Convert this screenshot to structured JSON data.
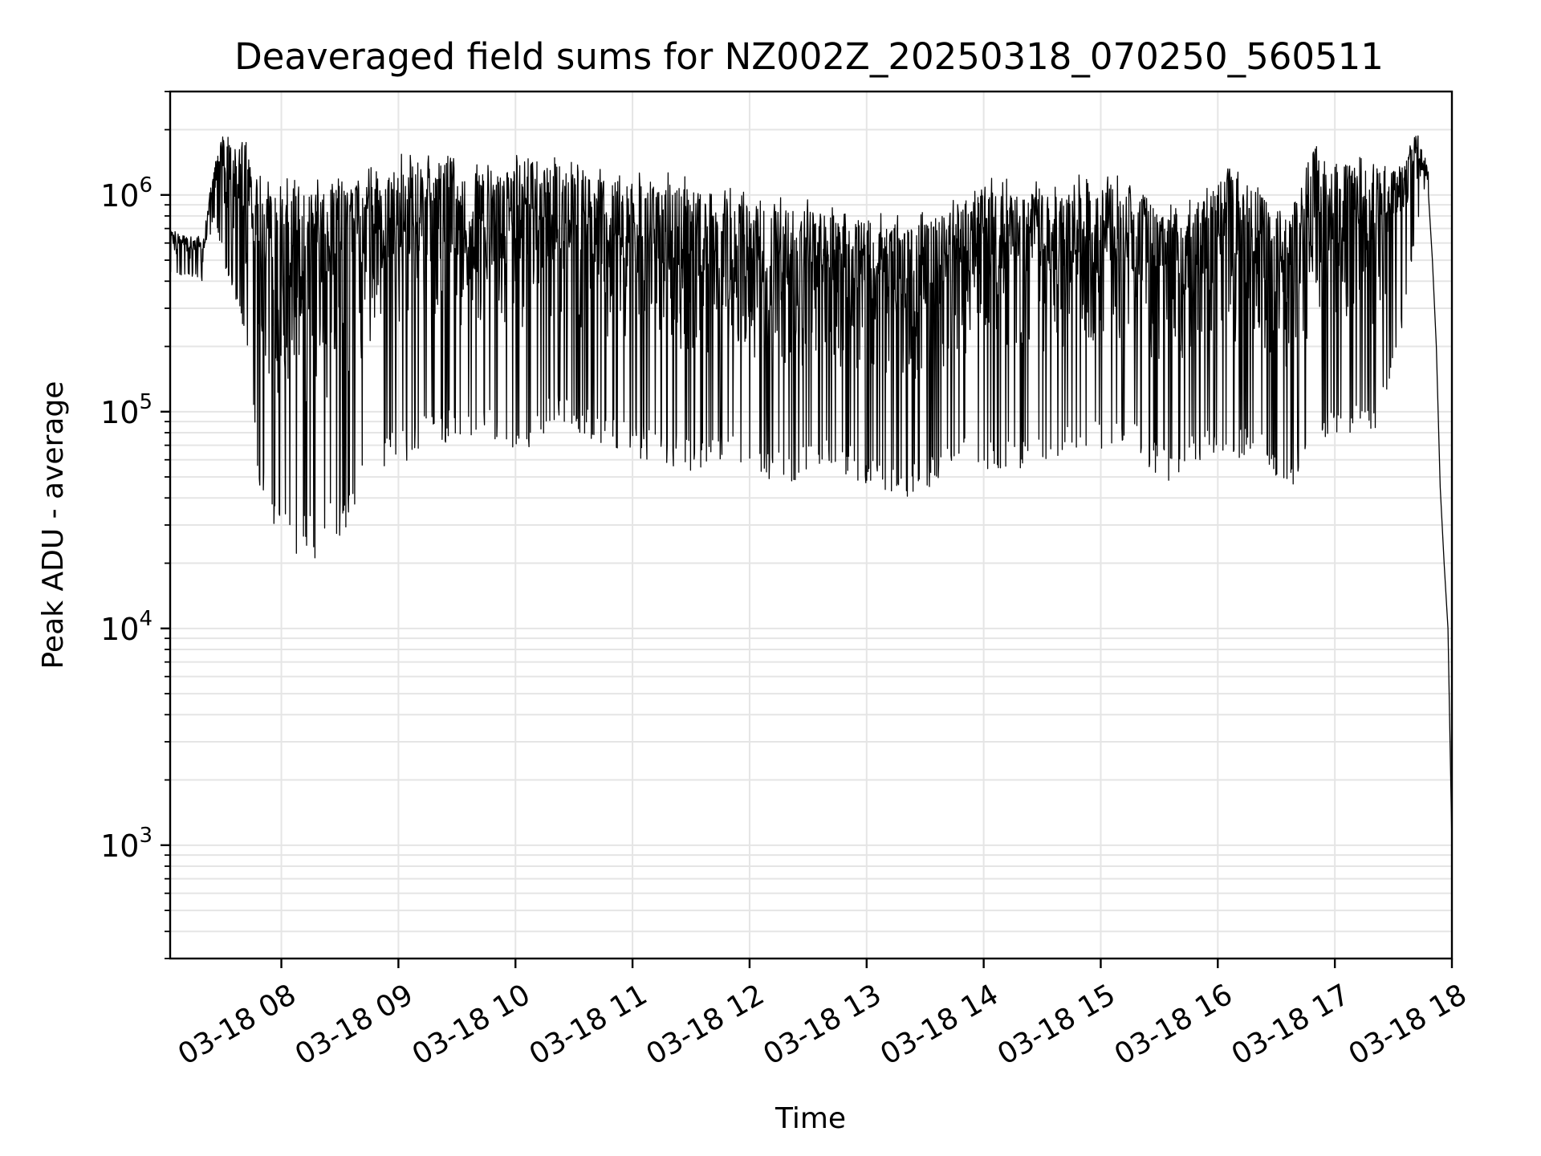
{
  "chart_data": {
    "type": "line",
    "title": "Deaveraged field sums for NZ002Z_20250318_070250_560511",
    "xlabel": "Time",
    "ylabel": "Peak ADU - average",
    "y_scale": "log",
    "ylim": [
      300,
      3000000
    ],
    "xlim": [
      "03-18 07:03",
      "03-18 18:00"
    ],
    "grid": true,
    "line_color": "#000000",
    "grid_color": "#e5e5e5",
    "x_ticks": [
      {
        "value": "03-18 08:00",
        "label": "03-18 08"
      },
      {
        "value": "03-18 09:00",
        "label": "03-18 09"
      },
      {
        "value": "03-18 10:00",
        "label": "03-18 10"
      },
      {
        "value": "03-18 11:00",
        "label": "03-18 11"
      },
      {
        "value": "03-18 12:00",
        "label": "03-18 12"
      },
      {
        "value": "03-18 13:00",
        "label": "03-18 13"
      },
      {
        "value": "03-18 14:00",
        "label": "03-18 14"
      },
      {
        "value": "03-18 15:00",
        "label": "03-18 15"
      },
      {
        "value": "03-18 16:00",
        "label": "03-18 16"
      },
      {
        "value": "03-18 17:00",
        "label": "03-18 17"
      },
      {
        "value": "03-18 18:00",
        "label": "03-18 18"
      }
    ],
    "y_ticks": [
      {
        "value": 1000,
        "base": "10",
        "exp": "3"
      },
      {
        "value": 10000,
        "base": "10",
        "exp": "4"
      },
      {
        "value": 100000,
        "base": "10",
        "exp": "5"
      },
      {
        "value": 1000000,
        "base": "10",
        "exp": "6"
      }
    ],
    "series": [
      {
        "envelope": [
          {
            "t": "03-18 07:03",
            "hi": 700000,
            "lo": 420000
          },
          {
            "t": "03-18 07:12",
            "hi": 650000,
            "lo": 430000
          },
          {
            "t": "03-18 07:20",
            "hi": 650000,
            "lo": 400000
          },
          {
            "t": "03-18 07:25",
            "hi": 1300000,
            "lo": 800000
          },
          {
            "t": "03-18 07:30",
            "hi": 2000000,
            "lo": 500000
          },
          {
            "t": "03-18 07:36",
            "hi": 1700000,
            "lo": 350000
          },
          {
            "t": "03-18 07:42",
            "hi": 2000000,
            "lo": 180000
          },
          {
            "t": "03-18 07:48",
            "hi": 1600000,
            "lo": 50000
          },
          {
            "t": "03-18 07:54",
            "hi": 1200000,
            "lo": 26000
          },
          {
            "t": "03-18 08:05",
            "hi": 1200000,
            "lo": 20000
          },
          {
            "t": "03-18 08:20",
            "hi": 1250000,
            "lo": 21000
          },
          {
            "t": "03-18 08:35",
            "hi": 1300000,
            "lo": 30000
          },
          {
            "t": "03-18 08:50",
            "hi": 1400000,
            "lo": 50000
          },
          {
            "t": "03-18 09:05",
            "hi": 1600000,
            "lo": 60000
          },
          {
            "t": "03-18 09:20",
            "hi": 1700000,
            "lo": 75000
          },
          {
            "t": "03-18 09:35",
            "hi": 1500000,
            "lo": 65000
          },
          {
            "t": "03-18 09:50",
            "hi": 1400000,
            "lo": 75000
          },
          {
            "t": "03-18 10:05",
            "hi": 1700000,
            "lo": 60000
          },
          {
            "t": "03-18 10:20",
            "hi": 1500000,
            "lo": 90000
          },
          {
            "t": "03-18 10:35",
            "hi": 1400000,
            "lo": 75000
          },
          {
            "t": "03-18 10:50",
            "hi": 1350000,
            "lo": 65000
          },
          {
            "t": "03-18 11:05",
            "hi": 1300000,
            "lo": 60000
          },
          {
            "t": "03-18 11:20",
            "hi": 1300000,
            "lo": 55000
          },
          {
            "t": "03-18 11:35",
            "hi": 1250000,
            "lo": 50000
          },
          {
            "t": "03-18 11:50",
            "hi": 1100000,
            "lo": 65000
          },
          {
            "t": "03-18 12:05",
            "hi": 1000000,
            "lo": 45000
          },
          {
            "t": "03-18 12:20",
            "hi": 1000000,
            "lo": 45000
          },
          {
            "t": "03-18 12:35",
            "hi": 950000,
            "lo": 55000
          },
          {
            "t": "03-18 12:50",
            "hi": 900000,
            "lo": 50000
          },
          {
            "t": "03-18 13:05",
            "hi": 850000,
            "lo": 45000
          },
          {
            "t": "03-18 13:20",
            "hi": 800000,
            "lo": 40000
          },
          {
            "t": "03-18 13:35",
            "hi": 900000,
            "lo": 45000
          },
          {
            "t": "03-18 13:50",
            "hi": 1100000,
            "lo": 55000
          },
          {
            "t": "03-18 14:05",
            "hi": 1200000,
            "lo": 50000
          },
          {
            "t": "03-18 14:20",
            "hi": 1200000,
            "lo": 50000
          },
          {
            "t": "03-18 14:35",
            "hi": 1150000,
            "lo": 60000
          },
          {
            "t": "03-18 14:50",
            "hi": 1250000,
            "lo": 60000
          },
          {
            "t": "03-18 15:05",
            "hi": 1300000,
            "lo": 70000
          },
          {
            "t": "03-18 15:20",
            "hi": 1200000,
            "lo": 60000
          },
          {
            "t": "03-18 15:35",
            "hi": 900000,
            "lo": 45000
          },
          {
            "t": "03-18 15:50",
            "hi": 1000000,
            "lo": 60000
          },
          {
            "t": "03-18 16:05",
            "hi": 1500000,
            "lo": 55000
          },
          {
            "t": "03-18 16:20",
            "hi": 1200000,
            "lo": 60000
          },
          {
            "t": "03-18 16:35",
            "hi": 900000,
            "lo": 40000
          },
          {
            "t": "03-18 16:50",
            "hi": 1700000,
            "lo": 70000
          },
          {
            "t": "03-18 17:05",
            "hi": 1600000,
            "lo": 80000
          },
          {
            "t": "03-18 17:20",
            "hi": 1500000,
            "lo": 70000
          },
          {
            "t": "03-18 17:35",
            "hi": 1400000,
            "lo": 250000
          },
          {
            "t": "03-18 17:42",
            "hi": 2100000,
            "lo": 700000
          },
          {
            "t": "03-18 17:48",
            "hi": 1300000,
            "lo": 850000
          }
        ],
        "tail": [
          {
            "t": "03-18 17:48",
            "y": 1000000
          },
          {
            "t": "03-18 17:50",
            "y": 500000
          },
          {
            "t": "03-18 17:52",
            "y": 200000
          },
          {
            "t": "03-18 17:54",
            "y": 45000
          },
          {
            "t": "03-18 17:56",
            "y": 20000
          },
          {
            "t": "03-18 17:58",
            "y": 10000
          },
          {
            "t": "03-18 18:00",
            "y": 1000
          },
          {
            "t": "03-18 18:00",
            "y": 300
          }
        ]
      }
    ]
  }
}
